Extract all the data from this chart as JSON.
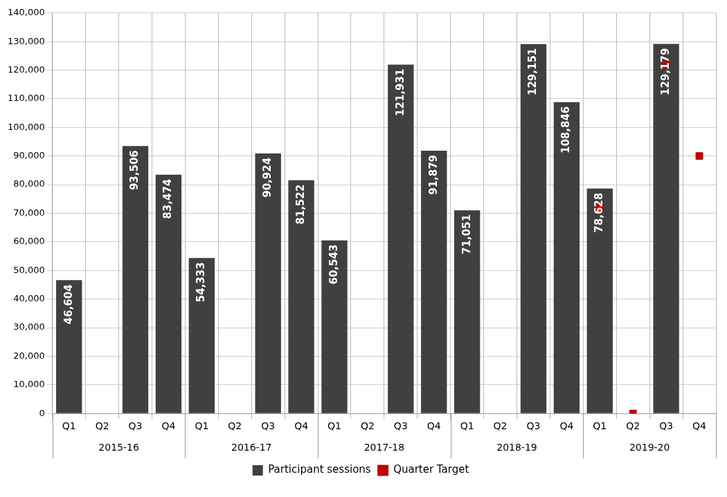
{
  "chart_data": {
    "type": "bar",
    "categories": [
      "Q1",
      "Q2",
      "Q3",
      "Q4",
      "Q1",
      "Q2",
      "Q3",
      "Q4",
      "Q1",
      "Q2",
      "Q3",
      "Q4",
      "Q1",
      "Q2",
      "Q3",
      "Q4",
      "Q1",
      "Q2",
      "Q3",
      "Q4"
    ],
    "annotations": [
      "2015-16",
      "2016-17",
      "2017-18",
      "2018-19",
      "2019-20"
    ],
    "series": [
      {
        "name": "Participant sessions",
        "color": "#404040",
        "values": [
          46604,
          null,
          93506,
          83474,
          54333,
          null,
          90924,
          81522,
          60543,
          null,
          121931,
          91879,
          71051,
          null,
          129151,
          108846,
          78628,
          null,
          129179,
          null
        ],
        "value_labels": [
          "46,604",
          null,
          "93,506",
          "83,474",
          "54,333",
          null,
          "90,924",
          "81,522",
          "60,543",
          null,
          "121,931",
          "91,879",
          "71,051",
          null,
          "129,151",
          "108,846",
          "78,628",
          null,
          "129,179",
          null
        ]
      },
      {
        "name": "Quarter Target",
        "type": "scatter",
        "color": "#c00000",
        "marker": "square",
        "values": [
          null,
          null,
          null,
          null,
          null,
          null,
          null,
          null,
          null,
          null,
          null,
          null,
          null,
          null,
          null,
          null,
          72000,
          0,
          122000,
          90000
        ]
      }
    ],
    "ylim": [
      0,
      140000
    ],
    "yticks": [
      {
        "value": 0,
        "label": "0"
      },
      {
        "value": 10000,
        "label": "10,000"
      },
      {
        "value": 20000,
        "label": "20,000"
      },
      {
        "value": 30000,
        "label": "30,000"
      },
      {
        "value": 40000,
        "label": "40,000"
      },
      {
        "value": 50000,
        "label": "50,000"
      },
      {
        "value": 60000,
        "label": "60,000"
      },
      {
        "value": 70000,
        "label": "70,000"
      },
      {
        "value": 80000,
        "label": "80,000"
      },
      {
        "value": 90000,
        "label": "90,000"
      },
      {
        "value": 100000,
        "label": "100,000"
      },
      {
        "value": 110000,
        "label": "110,000"
      },
      {
        "value": 120000,
        "label": "120,000"
      },
      {
        "value": 130000,
        "label": "130,000"
      },
      {
        "value": 140000,
        "label": "140,000"
      }
    ],
    "grid": true,
    "legend": "bottom"
  }
}
